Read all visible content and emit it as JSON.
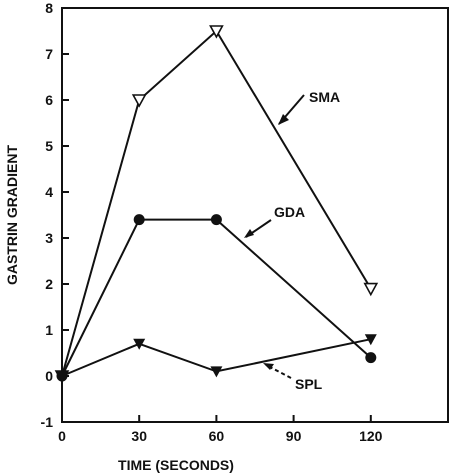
{
  "chart_data": {
    "type": "line",
    "title": "",
    "xlabel": "TIME (SECONDS)",
    "ylabel": "GASTRIN GRADIENT",
    "xlim": [
      0,
      150
    ],
    "ylim": [
      -1,
      8
    ],
    "xticks": [
      0,
      30,
      60,
      90,
      120
    ],
    "yticks": [
      -1,
      0,
      1,
      2,
      3,
      4,
      5,
      6,
      7,
      8
    ],
    "grid": false,
    "series": [
      {
        "name": "SMA",
        "marker": "open-triangle-down",
        "x": [
          0,
          30,
          60,
          120
        ],
        "y": [
          0,
          6.0,
          7.5,
          1.9
        ]
      },
      {
        "name": "GDA",
        "marker": "filled-circle",
        "x": [
          0,
          30,
          60,
          120
        ],
        "y": [
          0,
          3.4,
          3.4,
          0.4
        ]
      },
      {
        "name": "SPL",
        "marker": "filled-triangle-down",
        "x": [
          0,
          30,
          60,
          120
        ],
        "y": [
          0,
          0.7,
          0.1,
          0.8
        ]
      }
    ],
    "annotations": [
      {
        "text": "SMA",
        "points_to": "SMA"
      },
      {
        "text": "GDA",
        "points_to": "GDA"
      },
      {
        "text": "SPL",
        "points_to": "SPL"
      }
    ]
  }
}
